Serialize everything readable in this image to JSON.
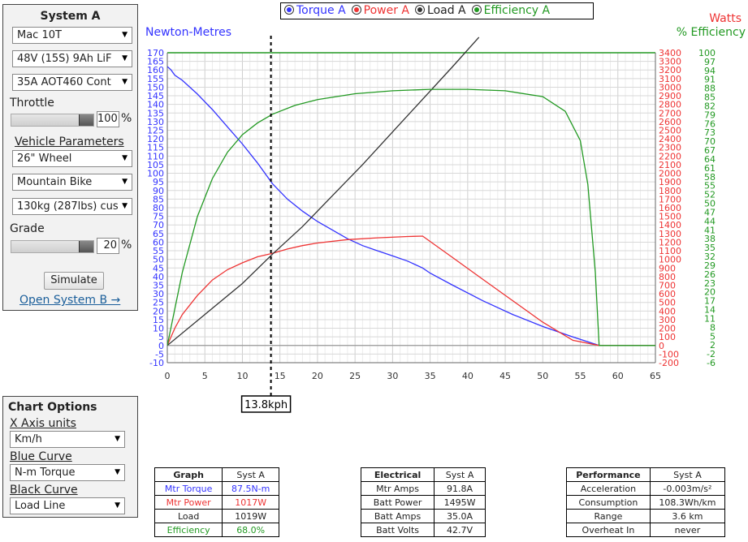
{
  "system_panel": {
    "title": "System A",
    "motor": "Mac 10T",
    "battery": "48V (15S) 9Ah LiF",
    "controller": "35A AOT460 Cont",
    "throttle_label": "Throttle",
    "throttle_value": "100",
    "throttle_unit": "%",
    "vehicle_params_label": "Vehicle Parameters",
    "wheel": "26\"  Wheel",
    "bike_type": "Mountain Bike",
    "weight": "130kg (287lbs) cus",
    "grade_label": "Grade",
    "grade_value": "20",
    "grade_unit": "%",
    "simulate_label": "Simulate",
    "open_system_b_label": "Open System B →"
  },
  "chart_options": {
    "title": "Chart Options",
    "x_axis_label": "X Axis units",
    "x_axis_value": "Km/h",
    "blue_curve_label": "Blue Curve",
    "blue_curve_value": "N-m Torque",
    "black_curve_label": "Black Curve",
    "black_curve_value": "Load Line"
  },
  "legend": {
    "items": [
      {
        "label": "Torque A",
        "color": "#3333ff"
      },
      {
        "label": "Power A",
        "color": "#ee3333"
      },
      {
        "label": "Load A",
        "color": "#333333"
      },
      {
        "label": "Efficiency A",
        "color": "#229922"
      }
    ]
  },
  "axis_titles": {
    "left": "Newton-Metres",
    "right_top": "Watts",
    "right_bottom": "% Efficiency"
  },
  "marker": {
    "label": "13.8kph",
    "x": 13.8
  },
  "colors": {
    "torque": "#3333ff",
    "power": "#ee3333",
    "load": "#333333",
    "efficiency": "#229922"
  },
  "chart_data": {
    "type": "line",
    "xlim": [
      0,
      65
    ],
    "x_ticks": [
      0,
      5,
      10,
      15,
      20,
      25,
      30,
      35,
      40,
      45,
      50,
      55,
      60,
      65
    ],
    "left_axis": {
      "label": "Newton-Metres",
      "ylim": [
        -10,
        170
      ],
      "ticks": [
        -10,
        -5,
        0,
        5,
        10,
        15,
        20,
        25,
        30,
        35,
        40,
        45,
        50,
        55,
        60,
        65,
        70,
        75,
        80,
        85,
        90,
        95,
        100,
        105,
        110,
        115,
        120,
        125,
        130,
        135,
        140,
        145,
        150,
        155,
        160,
        165,
        170
      ]
    },
    "watts_axis": {
      "label": "Watts",
      "ylim": [
        -200,
        3400
      ],
      "ticks": [
        -200,
        -100,
        0,
        100,
        200,
        300,
        400,
        500,
        600,
        700,
        800,
        900,
        1000,
        1100,
        1200,
        1300,
        1400,
        1500,
        1600,
        1700,
        1800,
        1900,
        2000,
        2100,
        2200,
        2300,
        2400,
        2500,
        2600,
        2700,
        2800,
        2900,
        3000,
        3100,
        3200,
        3300,
        3400
      ]
    },
    "efficiency_axis": {
      "label": "% Efficiency",
      "ticks": [
        "-6",
        "-2",
        "2",
        "5",
        "8",
        "11",
        "14",
        "17",
        "20",
        "23",
        "26",
        "29",
        "32",
        "35",
        "38",
        "41",
        "44",
        "47",
        "50",
        "52",
        "55",
        "58",
        "61",
        "64",
        "67",
        "70",
        "73",
        "76",
        "79",
        "82",
        "85",
        "88",
        "91",
        "94",
        "97",
        "100"
      ]
    },
    "grid": true,
    "series": [
      {
        "name": "Torque A",
        "axis": "left",
        "points": [
          [
            0,
            162
          ],
          [
            0.5,
            160
          ],
          [
            1,
            157
          ],
          [
            2,
            154
          ],
          [
            4,
            146
          ],
          [
            6,
            137
          ],
          [
            8,
            127
          ],
          [
            10,
            117
          ],
          [
            12,
            106
          ],
          [
            14,
            94
          ],
          [
            16,
            85
          ],
          [
            18,
            78
          ],
          [
            20,
            72
          ],
          [
            22,
            67
          ],
          [
            24,
            62
          ],
          [
            26,
            58
          ],
          [
            28,
            55
          ],
          [
            30,
            52
          ],
          [
            32,
            49
          ],
          [
            34,
            45
          ],
          [
            35,
            42
          ],
          [
            38,
            35
          ],
          [
            42,
            26
          ],
          [
            46,
            18
          ],
          [
            50,
            11
          ],
          [
            54,
            5
          ],
          [
            57.5,
            0
          ],
          [
            65,
            0
          ]
        ]
      },
      {
        "name": "Power A",
        "axis": "watts",
        "points": [
          [
            0,
            0
          ],
          [
            1,
            200
          ],
          [
            2,
            360
          ],
          [
            4,
            580
          ],
          [
            6,
            760
          ],
          [
            8,
            880
          ],
          [
            10,
            960
          ],
          [
            12,
            1030
          ],
          [
            14,
            1070
          ],
          [
            16,
            1120
          ],
          [
            18,
            1160
          ],
          [
            20,
            1190
          ],
          [
            24,
            1230
          ],
          [
            28,
            1250
          ],
          [
            32,
            1265
          ],
          [
            34,
            1270
          ],
          [
            38,
            1020
          ],
          [
            42,
            770
          ],
          [
            46,
            520
          ],
          [
            50,
            270
          ],
          [
            54,
            60
          ],
          [
            57.5,
            0
          ],
          [
            65,
            0
          ]
        ]
      },
      {
        "name": "Load A",
        "axis": "left",
        "points": [
          [
            0,
            0
          ],
          [
            5,
            18
          ],
          [
            10,
            36
          ],
          [
            14,
            53
          ],
          [
            18,
            69
          ],
          [
            22,
            87
          ],
          [
            26,
            105
          ],
          [
            30,
            124
          ],
          [
            34,
            143
          ],
          [
            38,
            162
          ],
          [
            41.5,
            179
          ]
        ]
      },
      {
        "name": "Efficiency A",
        "axis": "efficiency",
        "points": [
          [
            0,
            0
          ],
          [
            2,
            25
          ],
          [
            4,
            44
          ],
          [
            6,
            57
          ],
          [
            8,
            66
          ],
          [
            10,
            72
          ],
          [
            12,
            76
          ],
          [
            14,
            79
          ],
          [
            17,
            82
          ],
          [
            20,
            84
          ],
          [
            25,
            86
          ],
          [
            30,
            87
          ],
          [
            35,
            87.5
          ],
          [
            40,
            87.5
          ],
          [
            45,
            87
          ],
          [
            50,
            85
          ],
          [
            53,
            80
          ],
          [
            55,
            70
          ],
          [
            56,
            55
          ],
          [
            57,
            25
          ],
          [
            57.5,
            0
          ],
          [
            65,
            0
          ]
        ]
      }
    ]
  },
  "tables": {
    "graph": {
      "headers": [
        "Graph",
        "Syst A"
      ],
      "rows": [
        {
          "label": "Mtr Torque",
          "value": "87.5N-m",
          "color": "#3333ff"
        },
        {
          "label": "Mtr Power",
          "value": "1017W",
          "color": "#ee3333"
        },
        {
          "label": "Load",
          "value": "1019W",
          "color": "#222222"
        },
        {
          "label": "Efficiency",
          "value": "68.0%",
          "color": "#229922"
        }
      ]
    },
    "electrical": {
      "headers": [
        "Electrical",
        "Syst A"
      ],
      "rows": [
        {
          "label": "Mtr Amps",
          "value": "91.8A"
        },
        {
          "label": "Batt Power",
          "value": "1495W"
        },
        {
          "label": "Batt Amps",
          "value": "35.0A"
        },
        {
          "label": "Batt Volts",
          "value": "42.7V"
        }
      ]
    },
    "performance": {
      "headers": [
        "Performance",
        "Syst A"
      ],
      "rows": [
        {
          "label": "Acceleration",
          "value": "-0.003m/s²"
        },
        {
          "label": "Consumption",
          "value": "108.3Wh/km"
        },
        {
          "label": "Range",
          "value": "3.6 km"
        },
        {
          "label": "Overheat In",
          "value": "never"
        }
      ]
    }
  }
}
